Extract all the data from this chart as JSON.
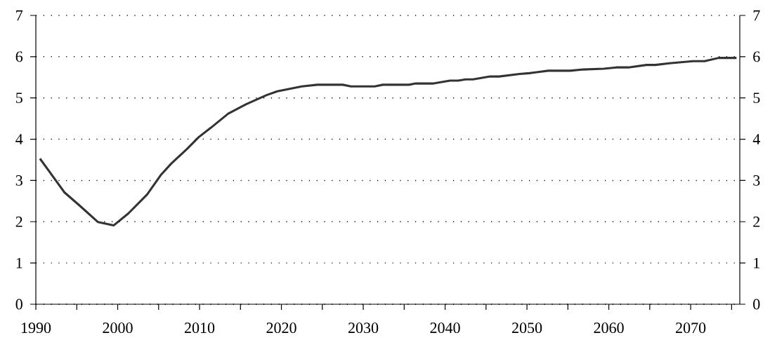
{
  "chart_data": {
    "type": "line",
    "x": [
      1990.5,
      1991.6,
      1993.5,
      1995.3,
      1997.6,
      1999.5,
      2001.3,
      2003.6,
      2005.3,
      2006.5,
      2008.5,
      2009.9,
      2011.4,
      2013.5,
      2015.7,
      2018.2,
      2019.5,
      2022.5,
      2024.4,
      2027.5,
      2028.5,
      2031.4,
      2032.4,
      2035.6,
      2036.4,
      2038.6,
      2040.6,
      2041.6,
      2042.5,
      2043.4,
      2045.5,
      2046.6,
      2049.1,
      2050.3,
      2052.6,
      2055.3,
      2056.9,
      2059.4,
      2060.9,
      2062.4,
      2064.6,
      2065.7,
      2067.4,
      2068.6,
      2070.3,
      2071.7,
      2073.4,
      2075.6
    ],
    "series": [
      {
        "color": "#333333",
        "values": [
          3.53,
          3.23,
          2.71,
          2.4,
          1.99,
          1.91,
          2.2,
          2.66,
          3.14,
          3.4,
          3.77,
          4.05,
          4.28,
          4.62,
          4.85,
          5.07,
          5.16,
          5.28,
          5.32,
          5.32,
          5.28,
          5.28,
          5.32,
          5.32,
          5.35,
          5.35,
          5.42,
          5.42,
          5.45,
          5.45,
          5.52,
          5.52,
          5.58,
          5.6,
          5.66,
          5.66,
          5.69,
          5.71,
          5.74,
          5.74,
          5.8,
          5.8,
          5.84,
          5.86,
          5.89,
          5.89,
          5.97,
          5.97
        ]
      }
    ],
    "xlim": [
      1990,
      2076
    ],
    "xticks": [
      1990,
      {
        "value": 1995,
        "label": null
      },
      2000,
      {
        "value": 2005,
        "label": null
      },
      2010,
      {
        "value": 2015,
        "label": null
      },
      2020,
      {
        "value": 2025,
        "label": null
      },
      2030,
      {
        "value": 2035,
        "label": null
      },
      2040,
      {
        "value": 2045,
        "label": null
      },
      2050,
      {
        "value": 2055,
        "label": null
      },
      2060,
      {
        "value": 2065,
        "label": null
      },
      2070,
      {
        "value": 2075,
        "label": null
      }
    ],
    "ylim": [
      0,
      7
    ],
    "yticks": [
      0,
      1,
      2,
      3,
      4,
      5,
      6,
      7
    ],
    "y2lim": [
      0,
      7
    ],
    "y2ticks": [
      0,
      1,
      2,
      3,
      4,
      5,
      6,
      7
    ],
    "grid": "y"
  }
}
